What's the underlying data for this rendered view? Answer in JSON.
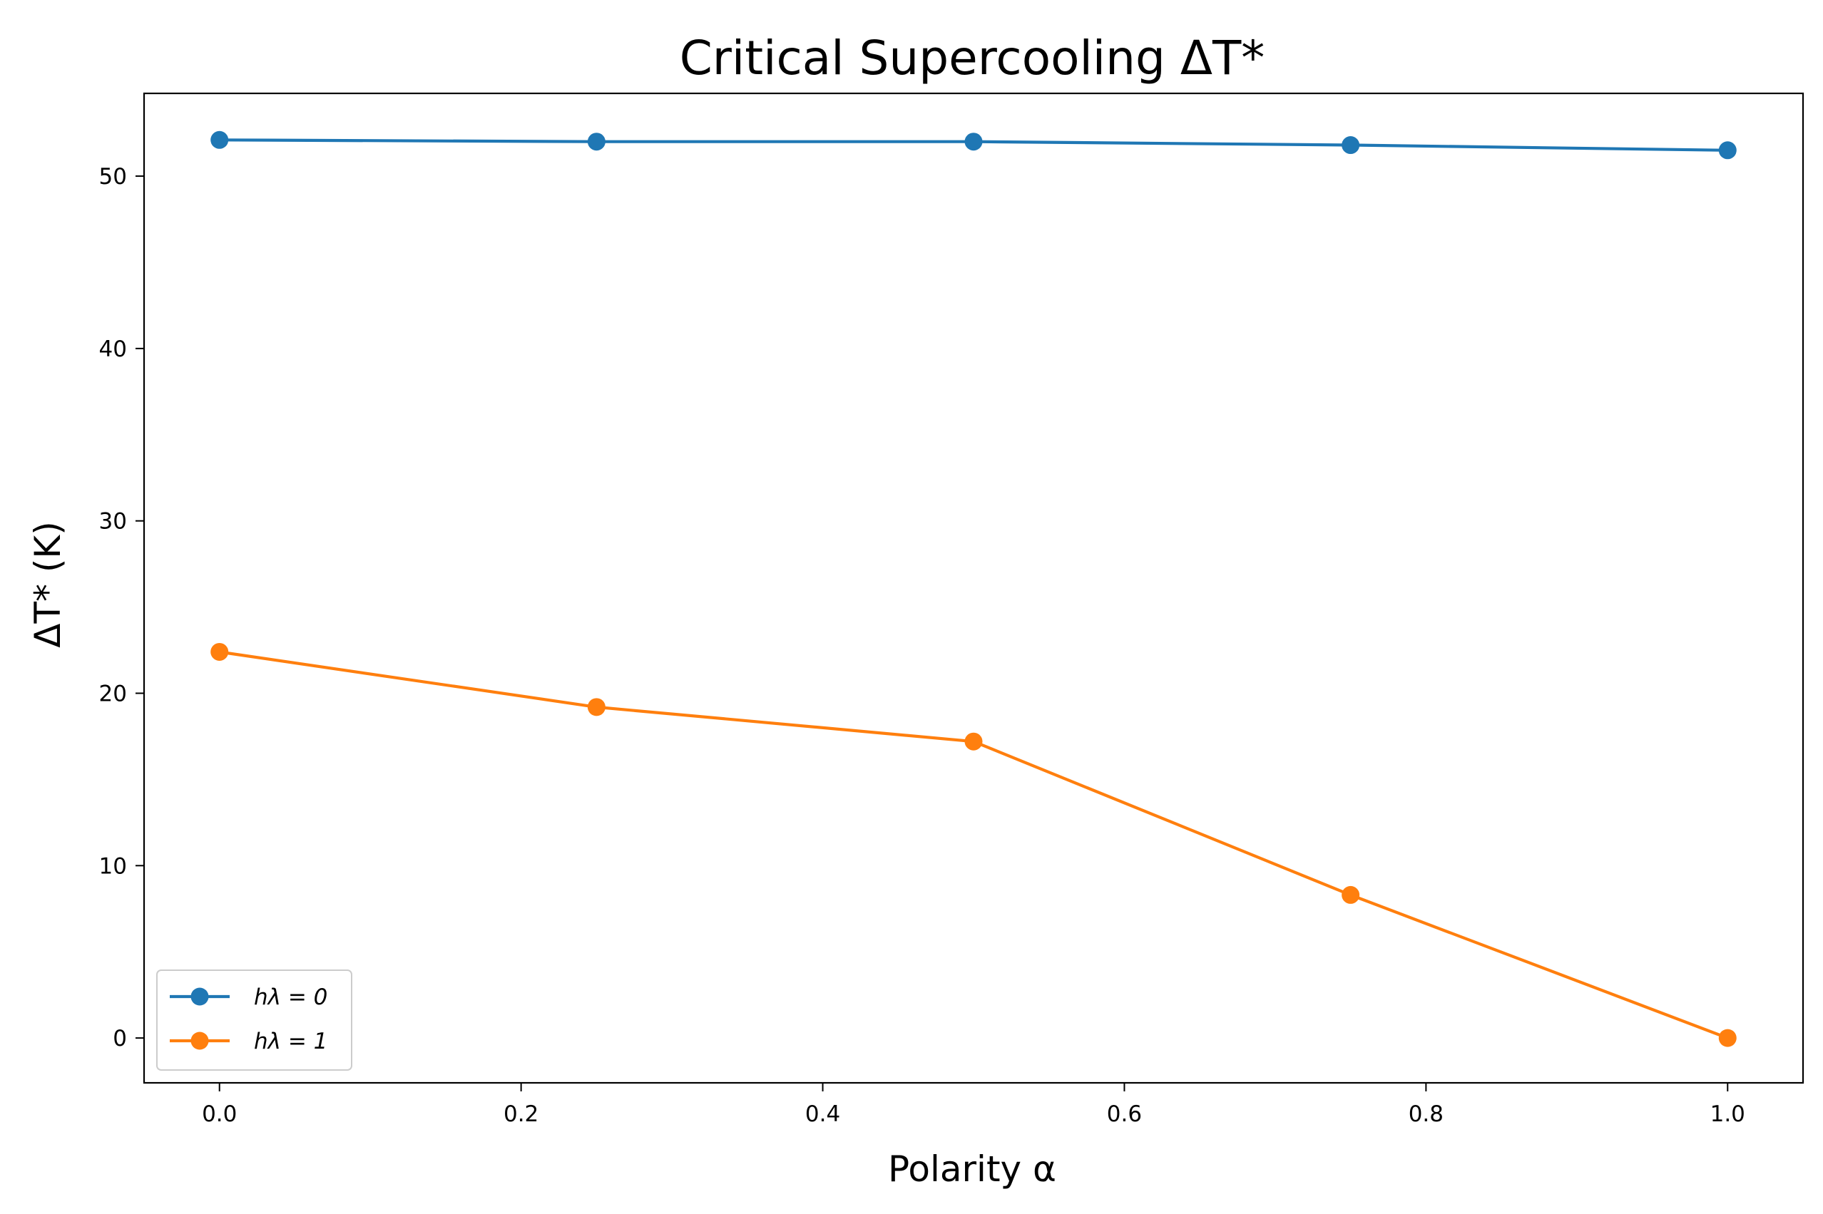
{
  "chart_data": {
    "type": "line",
    "title": "Critical Supercooling ΔT*",
    "xlabel": "Polarity α",
    "ylabel": "ΔT*  (K)",
    "x": [
      0.0,
      0.25,
      0.5,
      0.75,
      1.0
    ],
    "xlim": [
      -0.05,
      1.05
    ],
    "ylim": [
      -2.6,
      54.8
    ],
    "xticks": [
      0.0,
      0.2,
      0.4,
      0.6,
      0.8,
      1.0
    ],
    "xtick_labels": [
      "0.0",
      "0.2",
      "0.4",
      "0.6",
      "0.8",
      "1.0"
    ],
    "yticks": [
      0,
      10,
      20,
      30,
      40,
      50
    ],
    "ytick_labels": [
      "0",
      "10",
      "20",
      "30",
      "40",
      "50"
    ],
    "grid": false,
    "legend_position": "lower-left",
    "series": [
      {
        "name": "hλ = 0",
        "color": "#1f77b4",
        "values": [
          52.1,
          52.0,
          52.0,
          51.8,
          51.5
        ]
      },
      {
        "name": "hλ = 1",
        "color": "#ff7f0e",
        "values": [
          22.4,
          19.2,
          17.2,
          8.3,
          0.0
        ]
      }
    ]
  }
}
